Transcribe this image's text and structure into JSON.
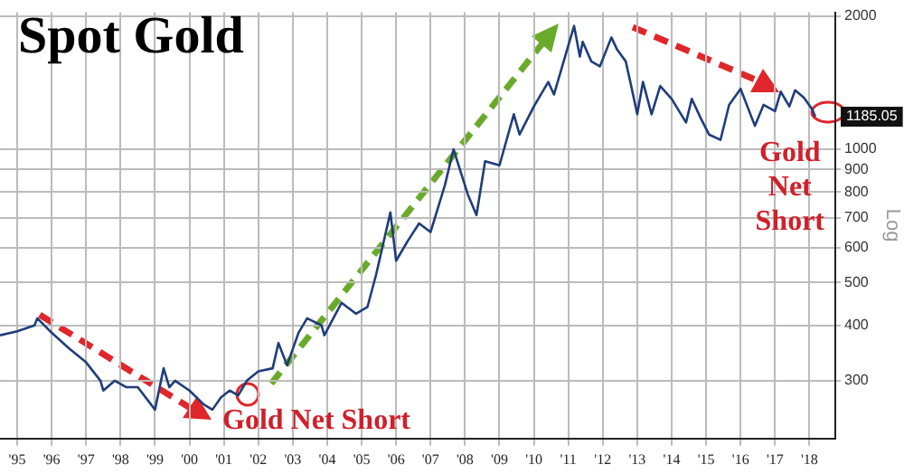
{
  "chart_data": {
    "type": "line",
    "title": "Spot Gold",
    "ylabel": "Log",
    "log": "y",
    "grid": true,
    "legend": false,
    "marker": "none",
    "line_style": "solid",
    "xlim": [
      "1995-01",
      "2019-04"
    ],
    "ylim": [
      222,
      2040
    ],
    "xticks": [
      {
        "value": "1995-07",
        "label": "'95"
      },
      {
        "value": "1996-07",
        "label": "'96"
      },
      {
        "value": "1997-07",
        "label": "'97"
      },
      {
        "value": "1998-07",
        "label": "'98"
      },
      {
        "value": "1999-07",
        "label": "'99"
      },
      {
        "value": "2000-07",
        "label": "'00"
      },
      {
        "value": "2001-07",
        "label": "'01"
      },
      {
        "value": "2002-07",
        "label": "'02"
      },
      {
        "value": "2003-07",
        "label": "'03"
      },
      {
        "value": "2004-07",
        "label": "'04"
      },
      {
        "value": "2005-07",
        "label": "'05"
      },
      {
        "value": "2006-07",
        "label": "'06"
      },
      {
        "value": "2007-07",
        "label": "'07"
      },
      {
        "value": "2008-07",
        "label": "'08"
      },
      {
        "value": "2009-07",
        "label": "'09"
      },
      {
        "value": "2010-07",
        "label": "'10"
      },
      {
        "value": "2011-07",
        "label": "'11"
      },
      {
        "value": "2012-07",
        "label": "'12"
      },
      {
        "value": "2013-07",
        "label": "'13"
      },
      {
        "value": "2014-07",
        "label": "'14"
      },
      {
        "value": "2015-07",
        "label": "'15"
      },
      {
        "value": "2016-07",
        "label": "'16"
      },
      {
        "value": "2017-07",
        "label": "'17"
      },
      {
        "value": "2018-07",
        "label": "'18"
      }
    ],
    "yticks": [
      300,
      400,
      500,
      600,
      700,
      800,
      900,
      1000,
      2000
    ],
    "annotations": [
      {
        "text": "Gold Net Short",
        "x": "2001-09",
        "y": 280
      },
      {
        "text": "Gold Net Short",
        "x": "2018-09",
        "y": 1150
      },
      {
        "text": "1185.05",
        "x": "2018-09",
        "y": 1185.05
      }
    ],
    "series": [
      {
        "color": "#1f3d7a",
        "x": [
          "1995-01",
          "1995-07",
          "1996-01",
          "1996-02",
          "1996-07",
          "1997-01",
          "1997-07",
          "1997-12",
          "1998-01",
          "1998-05",
          "1998-09",
          "1999-01",
          "1999-07",
          "1999-10",
          "1999-12",
          "2000-02",
          "2000-07",
          "2000-12",
          "2001-03",
          "2001-06",
          "2001-09",
          "2001-12",
          "2002-03",
          "2002-07",
          "2002-12",
          "2003-02",
          "2003-05",
          "2003-09",
          "2003-12",
          "2004-05",
          "2004-06",
          "2004-12",
          "2005-05",
          "2005-09",
          "2005-12",
          "2006-05",
          "2006-07",
          "2006-11",
          "2007-03",
          "2007-07",
          "2007-12",
          "2008-03",
          "2008-08",
          "2008-11",
          "2009-02",
          "2009-07",
          "2009-12",
          "2010-02",
          "2010-07",
          "2010-12",
          "2011-02",
          "2011-05",
          "2011-09",
          "2011-11",
          "2011-12",
          "2012-03",
          "2012-06",
          "2012-10",
          "2012-12",
          "2013-03",
          "2013-05",
          "2013-07",
          "2013-09",
          "2013-12",
          "2014-03",
          "2014-07",
          "2014-12",
          "2015-02",
          "2015-05",
          "2015-08",
          "2015-12",
          "2016-03",
          "2016-07",
          "2016-12",
          "2017-03",
          "2017-07",
          "2017-09",
          "2017-12",
          "2018-02",
          "2018-05",
          "2018-08",
          "2018-09"
        ],
        "values": [
          380,
          388,
          400,
          415,
          385,
          355,
          330,
          300,
          285,
          300,
          290,
          290,
          258,
          320,
          290,
          300,
          285,
          265,
          258,
          275,
          285,
          278,
          300,
          315,
          320,
          365,
          325,
          385,
          415,
          400,
          380,
          450,
          425,
          440,
          520,
          720,
          560,
          620,
          680,
          650,
          830,
          1000,
          790,
          710,
          940,
          920,
          1200,
          1080,
          1250,
          1420,
          1330,
          1550,
          1900,
          1620,
          1750,
          1580,
          1540,
          1790,
          1680,
          1580,
          1380,
          1200,
          1420,
          1200,
          1390,
          1300,
          1150,
          1300,
          1180,
          1080,
          1050,
          1260,
          1370,
          1130,
          1260,
          1220,
          1350,
          1250,
          1360,
          1310,
          1230,
          1185.05
        ]
      }
    ]
  }
}
